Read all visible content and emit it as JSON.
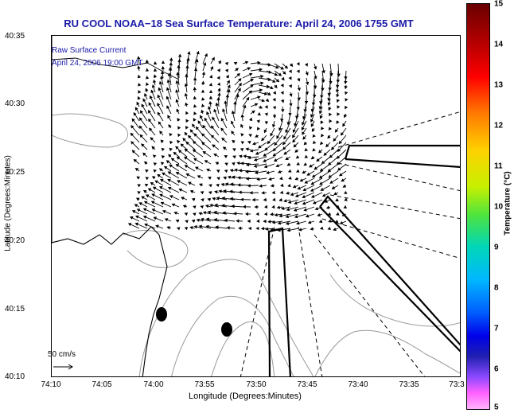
{
  "title": "RU COOL  NOAA−18  Sea Surface Temperature:  April 24, 2006 1755 GMT",
  "legend": {
    "line1": "Raw Surface Current",
    "line2": "April 24, 2006 19:00 GMT",
    "scale_label": "50 cm/s"
  },
  "axes": {
    "xlabel": "Longitude (Degrees:Minutes)",
    "ylabel": "Latitude (Degrees:Minutes)",
    "xticks": [
      "74:10",
      "74:05",
      "74:00",
      "73:55",
      "73:50",
      "73:45",
      "73:40",
      "73:35",
      "73:3"
    ],
    "yticks": [
      "40:35",
      "40:30",
      "40:25",
      "40:20",
      "40:15",
      "40:10"
    ]
  },
  "colorbar": {
    "title": "Temperature (°C)",
    "ticks": [
      "15",
      "14",
      "13",
      "12",
      "11",
      "10",
      "9",
      "8",
      "7",
      "6",
      "5"
    ]
  }
}
